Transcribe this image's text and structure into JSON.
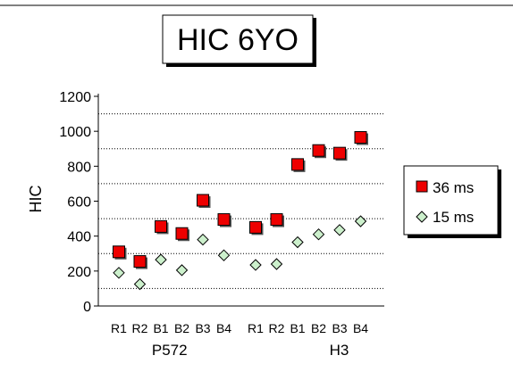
{
  "chart_data": {
    "type": "scatter",
    "title": "HIC 6YO",
    "ylabel": "HIC",
    "ylim": [
      0,
      1200
    ],
    "yticks": [
      0,
      200,
      400,
      600,
      800,
      1000,
      1200
    ],
    "categories": [
      "R1",
      "R2",
      "B1",
      "B2",
      "B3",
      "B4",
      "R1",
      "R2",
      "B1",
      "B2",
      "B3",
      "B4"
    ],
    "groups": [
      {
        "label": "P572",
        "start": 0,
        "end": 5
      },
      {
        "label": "H3",
        "start": 6,
        "end": 11
      }
    ],
    "grid": {
      "dotted_y": [
        100,
        300,
        500,
        700,
        900,
        1100
      ]
    },
    "legend_position": "right",
    "series": [
      {
        "name": "36 ms",
        "marker": "square",
        "color": "#ee0000",
        "values": [
          310,
          255,
          455,
          415,
          605,
          495,
          450,
          495,
          810,
          890,
          875,
          965
        ]
      },
      {
        "name": "15 ms",
        "marker": "diamond",
        "color": "#ccf0cc",
        "values": [
          190,
          125,
          265,
          205,
          380,
          290,
          235,
          240,
          365,
          410,
          435,
          485
        ]
      }
    ]
  }
}
